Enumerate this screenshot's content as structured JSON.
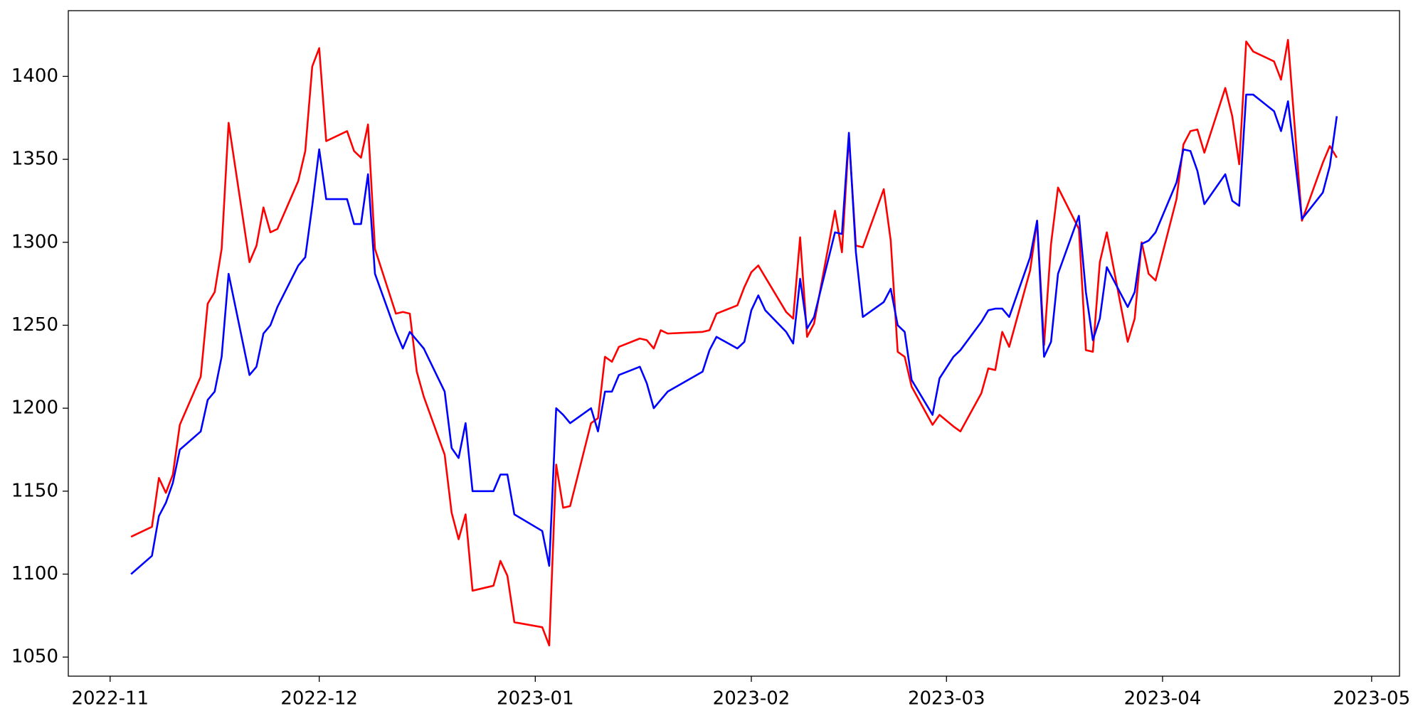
{
  "chart_data": {
    "type": "line",
    "x": [
      "2022-11-04",
      "2022-11-07",
      "2022-11-08",
      "2022-11-09",
      "2022-11-10",
      "2022-11-11",
      "2022-11-14",
      "2022-11-15",
      "2022-11-16",
      "2022-11-17",
      "2022-11-18",
      "2022-11-21",
      "2022-11-22",
      "2022-11-23",
      "2022-11-24",
      "2022-11-25",
      "2022-11-28",
      "2022-11-29",
      "2022-11-30",
      "2022-12-01",
      "2022-12-02",
      "2022-12-05",
      "2022-12-06",
      "2022-12-07",
      "2022-12-08",
      "2022-12-09",
      "2022-12-12",
      "2022-12-13",
      "2022-12-14",
      "2022-12-15",
      "2022-12-16",
      "2022-12-19",
      "2022-12-20",
      "2022-12-21",
      "2022-12-22",
      "2022-12-23",
      "2022-12-26",
      "2022-12-27",
      "2022-12-28",
      "2022-12-29",
      "2023-01-02",
      "2023-01-03",
      "2023-01-04",
      "2023-01-05",
      "2023-01-06",
      "2023-01-09",
      "2023-01-10",
      "2023-01-11",
      "2023-01-12",
      "2023-01-13",
      "2023-01-16",
      "2023-01-17",
      "2023-01-18",
      "2023-01-19",
      "2023-01-20",
      "2023-01-25",
      "2023-01-26",
      "2023-01-27",
      "2023-01-30",
      "2023-01-31",
      "2023-02-01",
      "2023-02-02",
      "2023-02-03",
      "2023-02-06",
      "2023-02-07",
      "2023-02-08",
      "2023-02-09",
      "2023-02-10",
      "2023-02-13",
      "2023-02-14",
      "2023-02-15",
      "2023-02-16",
      "2023-02-17",
      "2023-02-20",
      "2023-02-21",
      "2023-02-22",
      "2023-02-23",
      "2023-02-24",
      "2023-02-27",
      "2023-02-28",
      "2023-03-02",
      "2023-03-03",
      "2023-03-06",
      "2023-03-07",
      "2023-03-08",
      "2023-03-09",
      "2023-03-10",
      "2023-03-13",
      "2023-03-14",
      "2023-03-15",
      "2023-03-16",
      "2023-03-17",
      "2023-03-20",
      "2023-03-21",
      "2023-03-22",
      "2023-03-23",
      "2023-03-24",
      "2023-03-27",
      "2023-03-28",
      "2023-03-29",
      "2023-03-30",
      "2023-03-31",
      "2023-04-03",
      "2023-04-04",
      "2023-04-05",
      "2023-04-06",
      "2023-04-07",
      "2023-04-10",
      "2023-04-11",
      "2023-04-12",
      "2023-04-13",
      "2023-04-14",
      "2023-04-17",
      "2023-04-18",
      "2023-04-19",
      "2023-04-21",
      "2023-04-24",
      "2023-04-25",
      "2023-04-26"
    ],
    "series": [
      {
        "color": "#ff0000",
        "values": [
          1122.5,
          1128.5,
          1158,
          1149,
          1160,
          1190,
          1219,
          1263,
          1270,
          1296,
          1372,
          1288,
          1298,
          1321,
          1306,
          1308,
          1337,
          1355,
          1406,
          1417,
          1361,
          1367,
          1355,
          1351,
          1371,
          1296,
          1257,
          1258,
          1257,
          1222,
          1207,
          1172,
          1137,
          1121,
          1136,
          1090,
          1093,
          1108,
          1099,
          1071,
          1068,
          1057,
          1166,
          1140,
          1141,
          1191,
          1194,
          1231,
          1228,
          1237,
          1242,
          1241,
          1236,
          1247,
          1245,
          1246,
          1247,
          1257,
          1262,
          1273,
          1282,
          1286,
          1279,
          1258,
          1254,
          1303,
          1243,
          1251,
          1319,
          1294,
          1364,
          1298,
          1297,
          1332,
          1301,
          1234,
          1231,
          1213,
          1190,
          1196,
          1189,
          1186,
          1209,
          1224,
          1223,
          1246,
          1237,
          1283,
          1313,
          1238,
          1299,
          1333,
          1308,
          1235,
          1234,
          1288,
          1306,
          1240,
          1254,
          1300,
          1281,
          1277,
          1326,
          1359,
          1367,
          1368,
          1354,
          1393,
          1376,
          1347,
          1421,
          1415,
          1409,
          1398,
          1422,
          1313,
          1348,
          1358,
          1351
        ]
      },
      {
        "color": "#0000ff",
        "values": [
          1100,
          1111,
          1135,
          1143,
          1155,
          1175,
          1186,
          1205,
          1210,
          1231,
          1281,
          1220,
          1225,
          1245,
          1250,
          1261,
          1286,
          1291,
          1322,
          1356,
          1326,
          1326,
          1311,
          1311,
          1341,
          1281,
          1246,
          1236,
          1246,
          1241,
          1236,
          1210,
          1176,
          1170,
          1191,
          1150,
          1150,
          1160,
          1160,
          1136,
          1126,
          1105,
          1200,
          1196,
          1191,
          1200,
          1186,
          1210,
          1210,
          1220,
          1225,
          1215,
          1200,
          1205,
          1210,
          1222,
          1235,
          1243,
          1236,
          1240,
          1259,
          1268,
          1259,
          1246,
          1239,
          1278,
          1248,
          1255,
          1306,
          1305,
          1366,
          1294,
          1255,
          1264,
          1272,
          1250,
          1246,
          1217,
          1196,
          1218,
          1231,
          1235,
          1252,
          1259,
          1260,
          1260,
          1255,
          1291,
          1313,
          1231,
          1240,
          1281,
          1316,
          1270,
          1241,
          1254,
          1285,
          1261,
          1270,
          1299,
          1301,
          1306,
          1336,
          1356,
          1355,
          1343,
          1323,
          1341,
          1325,
          1322,
          1389,
          1389,
          1379,
          1367,
          1385,
          1314,
          1330,
          1346,
          1376
        ]
      }
    ],
    "xlim": [
      "2022-10-26",
      "2023-05-05"
    ],
    "xticks": [
      "2022-11",
      "2022-12",
      "2023-01",
      "2023-02",
      "2023-03",
      "2023-04",
      "2023-05"
    ],
    "ylim": [
      1038.5,
      1439.6
    ],
    "yticks": [
      1050,
      1100,
      1150,
      1200,
      1250,
      1300,
      1350,
      1400
    ],
    "grid": false
  }
}
